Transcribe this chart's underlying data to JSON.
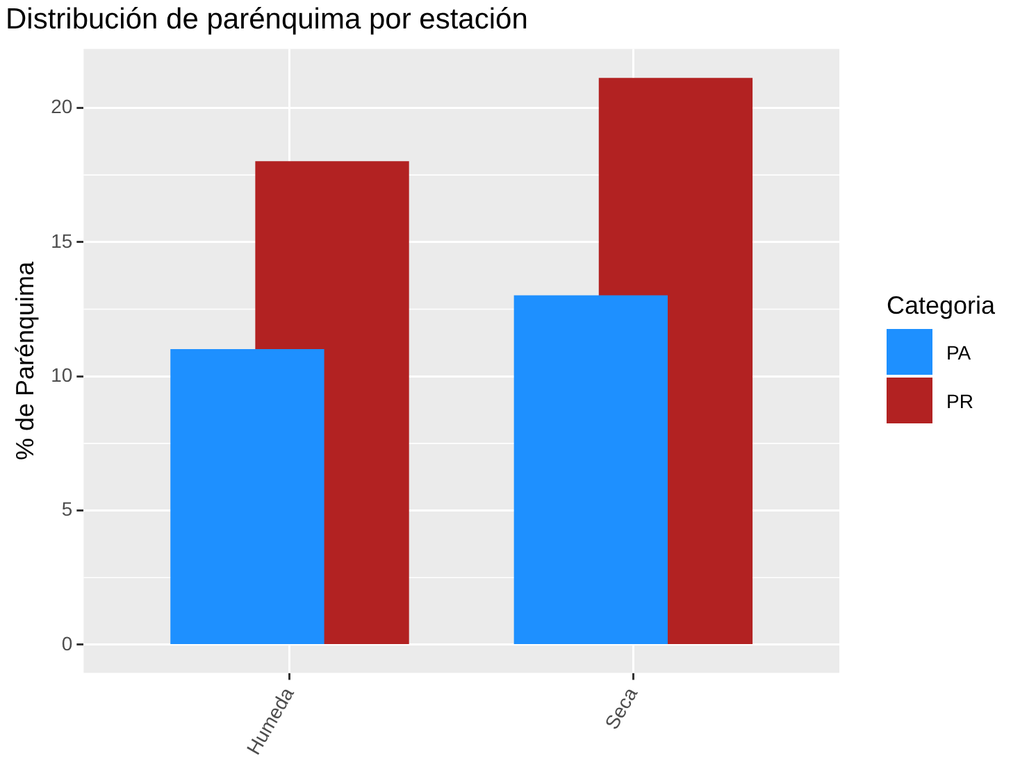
{
  "chart_data": {
    "type": "bar",
    "title": "Distribución de parénquima por estación",
    "ylabel": "% de Parénquima",
    "legend_title": "Categoria",
    "categories": [
      "Humeda",
      "Seca"
    ],
    "series": [
      {
        "name": "PA",
        "color": "#1e90ff",
        "values": [
          11,
          13
        ]
      },
      {
        "name": "PR",
        "color": "#b22222",
        "values": [
          18,
          21.1
        ]
      }
    ],
    "ylim": [
      -1.05,
      22.2
    ],
    "yticks": [
      0,
      5,
      10,
      15,
      20
    ],
    "grid": true,
    "legend": "right"
  }
}
